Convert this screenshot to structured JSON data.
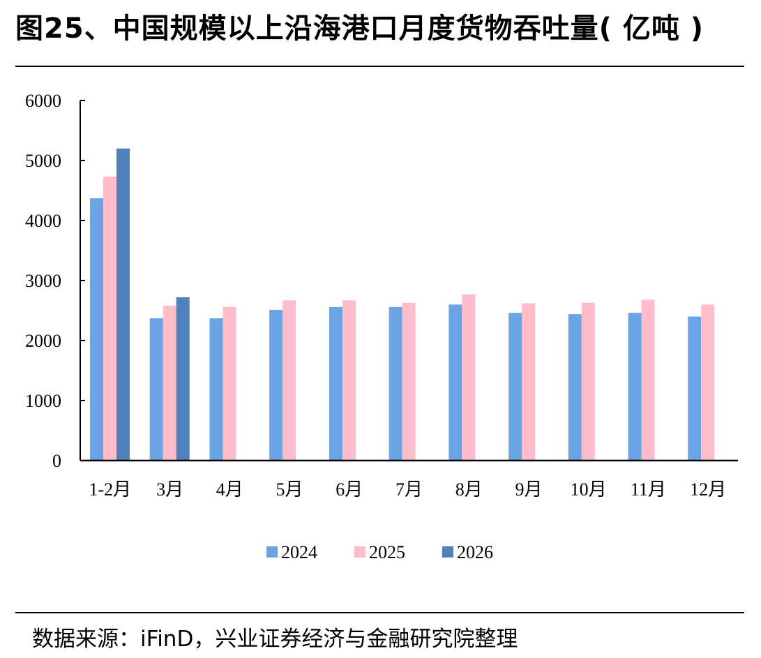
{
  "header": {
    "title": "图25、中国规模以上沿海港口月度货物吞吐量( 亿吨 )"
  },
  "footer": {
    "source": "数据来源：iFinD，兴业证券经济与金融研究院整理"
  },
  "chart_data": {
    "type": "bar",
    "title": "图25、中国规模以上沿海港口月度货物吞吐量( 亿吨 )",
    "xlabel": "",
    "ylabel": "",
    "categories": [
      "1-2月",
      "3月",
      "4月",
      "5月",
      "6月",
      "7月",
      "8月",
      "9月",
      "10月",
      "11月",
      "12月"
    ],
    "series": [
      {
        "name": "2024",
        "color": "#6aa4e4",
        "values": [
          4370,
          2370,
          2370,
          2510,
          2560,
          2560,
          2600,
          2460,
          2440,
          2460,
          2400
        ]
      },
      {
        "name": "2025",
        "color": "#ffbccb",
        "values": [
          4730,
          2580,
          2560,
          2670,
          2670,
          2630,
          2770,
          2620,
          2630,
          2680,
          2600
        ]
      },
      {
        "name": "2026",
        "color": "#4f81bd",
        "values": [
          5200,
          2720,
          null,
          null,
          null,
          null,
          null,
          null,
          null,
          null,
          null
        ]
      }
    ],
    "ylim": [
      0,
      6000
    ],
    "yticks": [
      0,
      1000,
      2000,
      3000,
      4000,
      5000,
      6000
    ],
    "grid": false,
    "legend_position": "bottom"
  }
}
